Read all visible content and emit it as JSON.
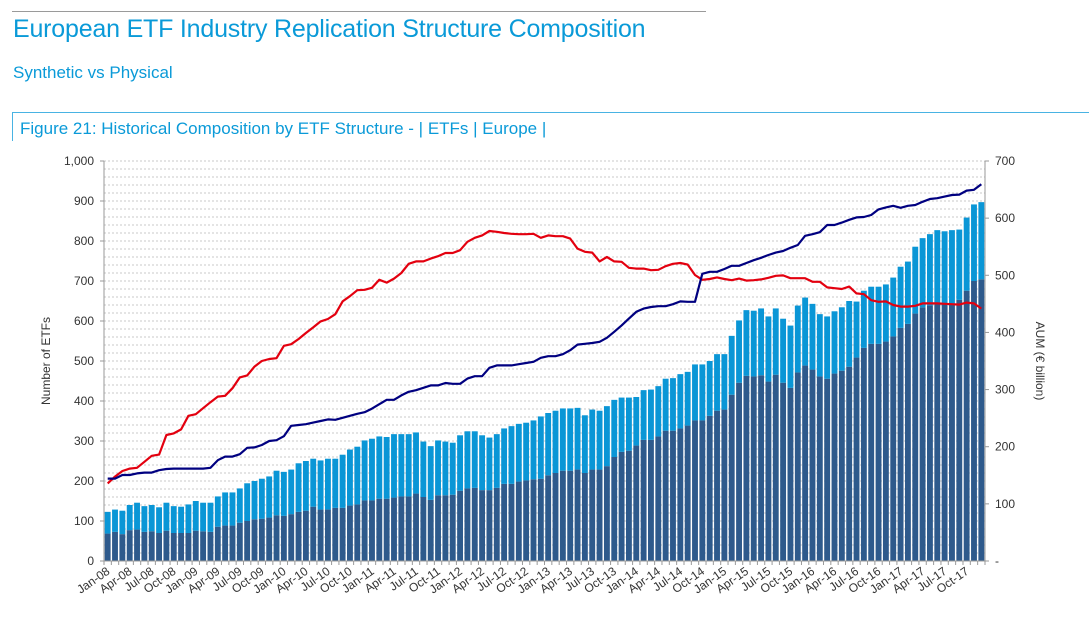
{
  "header": {
    "title": "European ETF Industry Replication Structure Composition",
    "subtitle": "Synthetic vs Physical",
    "figure_title": "Figure 21: Historical Composition by ETF Structure - | ETFs | Europe |"
  },
  "colors": {
    "title": "#0a9ad8",
    "bar_physical": "#2e5a8c",
    "bar_synthetic": "#0a96d6",
    "line_red": "#e3000f",
    "line_navy": "#000080"
  },
  "chart_data": {
    "type": "bar+line",
    "title": "Figure 21: Historical Composition by ETF Structure - | ETFs | Europe |",
    "ylabel_left": "Number of ETFs",
    "ylabel_right": "AUM (€ billion)",
    "ylim_left": [
      0,
      1000
    ],
    "ylim_right": [
      0,
      700
    ],
    "left_ticks": [
      "0",
      "100",
      "200",
      "300",
      "400",
      "500",
      "600",
      "700",
      "800",
      "900",
      "1,000"
    ],
    "right_ticks": [
      "-",
      "100",
      "200",
      "300",
      "400",
      "500",
      "600",
      "700"
    ],
    "grid": true,
    "x_frequency": "monthly",
    "x_tick_labels": [
      "Jan-08",
      "Apr-08",
      "Jul-08",
      "Oct-08",
      "Jan-09",
      "Apr-09",
      "Jul-09",
      "Oct-09",
      "Jan-10",
      "Apr-10",
      "Jul-10",
      "Oct-10",
      "Jan-11",
      "Apr-11",
      "Jul-11",
      "Oct-11",
      "Jan-12",
      "Apr-12",
      "Jul-12",
      "Oct-12",
      "Jan-13",
      "Apr-13",
      "Jul-13",
      "Oct-13",
      "Jan-14",
      "Apr-14",
      "Jul-14",
      "Oct-14",
      "Jan-15",
      "Apr-15",
      "Jul-15",
      "Oct-15",
      "Jan-16",
      "Apr-16",
      "Jul-16",
      "Oct-16",
      "Jan-17",
      "Apr-17",
      "Jul-17",
      "Oct-17"
    ],
    "bars_stacked": [
      {
        "axis": "right",
        "color": "#2e5a8c",
        "values": [
          48,
          51,
          47,
          54,
          55,
          51,
          52,
          49,
          53,
          49,
          49,
          49,
          53,
          52,
          51,
          60,
          62,
          62,
          67,
          70,
          73,
          74,
          76,
          80,
          79,
          82,
          86,
          88,
          95,
          90,
          90,
          93,
          93,
          97,
          99,
          106,
          106,
          109,
          109,
          111,
          113,
          113,
          118,
          112,
          107,
          115,
          115,
          116,
          123,
          127,
          128,
          124,
          124,
          128,
          135,
          135,
          139,
          141,
          143,
          144,
          150,
          154,
          158,
          158,
          160,
          154,
          160,
          160,
          166,
          182,
          191,
          193,
          202,
          212,
          212,
          218,
          228,
          228,
          232,
          237,
          246,
          246,
          254,
          263,
          265,
          291,
          312,
          324,
          323,
          325,
          314,
          326,
          312,
          303,
          330,
          342,
          335,
          323,
          319,
          328,
          333,
          340,
          356,
          373,
          380,
          380,
          384,
          393,
          408,
          415,
          433,
          444,
          447,
          449,
          449,
          449,
          457,
          473,
          490,
          493
        ]
      },
      {
        "axis": "right",
        "color": "#0a96d6",
        "values": [
          38,
          39,
          41,
          44,
          47,
          45,
          46,
          45,
          49,
          47,
          46,
          50,
          52,
          50,
          51,
          53,
          58,
          58,
          60,
          66,
          67,
          70,
          72,
          78,
          77,
          78,
          85,
          87,
          84,
          86,
          89,
          86,
          93,
          98,
          101,
          105,
          108,
          109,
          108,
          111,
          109,
          109,
          107,
          97,
          94,
          96,
          94,
          91,
          97,
          100,
          99,
          96,
          92,
          94,
          97,
          101,
          101,
          101,
          103,
          109,
          109,
          109,
          109,
          109,
          108,
          101,
          105,
          103,
          105,
          100,
          95,
          93,
          85,
          87,
          88,
          88,
          91,
          92,
          95,
          94,
          98,
          98,
          96,
          99,
          97,
          103,
          109,
          115,
          115,
          117,
          114,
          116,
          112,
          109,
          117,
          119,
          115,
          109,
          109,
          109,
          111,
          115,
          98,
          100,
          100,
          100,
          100,
          103,
          107,
          109,
          117,
          121,
          125,
          130,
          128,
          130,
          123,
          128,
          134,
          135
        ]
      }
    ],
    "lines": [
      {
        "axis": "left",
        "color": "#e3000f",
        "values": [
          194,
          211,
          225,
          231,
          233,
          248,
          263,
          266,
          315,
          319,
          329,
          363,
          367,
          382,
          397,
          411,
          413,
          432,
          459,
          464,
          486,
          500,
          505,
          507,
          538,
          542,
          555,
          570,
          584,
          599,
          605,
          617,
          649,
          662,
          677,
          678,
          683,
          703,
          696,
          706,
          720,
          743,
          749,
          749,
          756,
          762,
          770,
          770,
          777,
          798,
          808,
          814,
          825,
          823,
          820,
          818,
          817,
          817,
          818,
          808,
          814,
          812,
          812,
          806,
          781,
          773,
          771,
          749,
          760,
          749,
          748,
          733,
          731,
          731,
          727,
          728,
          737,
          743,
          745,
          741,
          715,
          703,
          705,
          709,
          705,
          702,
          706,
          701,
          702,
          704,
          708,
          713,
          714,
          707,
          707,
          707,
          698,
          698,
          684,
          682,
          680,
          686,
          669,
          667,
          652,
          648,
          649,
          640,
          636,
          636,
          638,
          644,
          644,
          644,
          643,
          642,
          641,
          646,
          644,
          631
        ]
      },
      {
        "axis": "left",
        "color": "#000080",
        "values": [
          206,
          206,
          215,
          215,
          219,
          221,
          221,
          227,
          230,
          231,
          231,
          231,
          231,
          231,
          233,
          252,
          261,
          261,
          267,
          283,
          284,
          290,
          300,
          302,
          312,
          338,
          340,
          342,
          346,
          350,
          354,
          353,
          358,
          363,
          368,
          372,
          381,
          392,
          403,
          403,
          414,
          423,
          427,
          433,
          439,
          439,
          445,
          443,
          443,
          456,
          462,
          462,
          483,
          489,
          489,
          489,
          492,
          495,
          498,
          508,
          512,
          512,
          517,
          527,
          541,
          543,
          545,
          548,
          558,
          573,
          589,
          606,
          623,
          631,
          635,
          637,
          637,
          642,
          649,
          648,
          648,
          718,
          723,
          723,
          730,
          738,
          738,
          745,
          752,
          758,
          765,
          771,
          775,
          783,
          790,
          813,
          817,
          822,
          840,
          840,
          846,
          853,
          859,
          860,
          865,
          879,
          884,
          888,
          883,
          888,
          890,
          898,
          905,
          907,
          911,
          915,
          916,
          926,
          928,
          942
        ]
      }
    ]
  }
}
